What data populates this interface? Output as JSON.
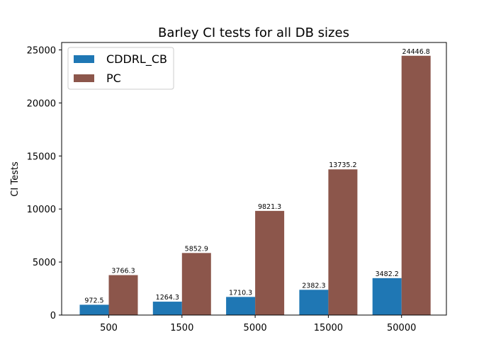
{
  "chart_data": {
    "type": "bar",
    "title": "Barley CI tests for all DB sizes",
    "xlabel": "",
    "ylabel": "CI Tests",
    "categories": [
      "500",
      "1500",
      "5000",
      "15000",
      "50000"
    ],
    "series": [
      {
        "name": "CDDRL_CB",
        "color": "#1f77b4",
        "values": [
          972.5,
          1264.3,
          1710.3,
          2382.3,
          3482.2
        ]
      },
      {
        "name": "PC",
        "color": "#8c564b",
        "values": [
          3766.3,
          5852.9,
          9821.3,
          13735.2,
          24446.8
        ]
      }
    ],
    "ylim": [
      0,
      25700
    ],
    "yticks": [
      0,
      5000,
      10000,
      15000,
      20000,
      25000
    ],
    "grid": false,
    "legend_position": "top-left"
  }
}
